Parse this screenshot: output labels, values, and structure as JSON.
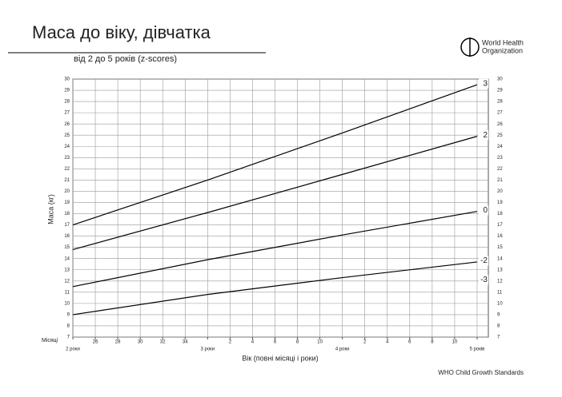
{
  "chart_data": {
    "type": "line",
    "title": "Маса до віку, дівчатка",
    "subtitle": "від 2 до 5 років (z-scores)",
    "y_label": "Маса (кг)",
    "x_label": "Вік (повні місяці і роки)",
    "x_unit_label": "Місяці",
    "source": "WHO Child Growth Standards",
    "logo": [
      "World Health",
      "Organization"
    ],
    "x": [
      24,
      36,
      48,
      60
    ],
    "series": [
      {
        "name": "3",
        "color": "#000000",
        "values": [
          17.0,
          21.0,
          25.2,
          29.5
        ]
      },
      {
        "name": "2",
        "color": "#000000",
        "values": [
          14.8,
          18.1,
          21.5,
          24.9
        ]
      },
      {
        "name": "0",
        "color": "#000000",
        "values": [
          11.5,
          13.9,
          16.1,
          18.2
        ]
      },
      {
        "name": "-2",
        "color": "#000000",
        "values": [
          9.0,
          10.8,
          12.3,
          13.7
        ]
      }
    ],
    "line_labels": [
      {
        "text": "3",
        "y": 29.6
      },
      {
        "text": "2",
        "y": 25.0
      },
      {
        "text": "0",
        "y": 18.3
      },
      {
        "text": "-2",
        "y": 13.8
      },
      {
        "text": "-3",
        "y": 12.1
      }
    ],
    "xlim": [
      24,
      61
    ],
    "ylim": [
      7,
      30
    ],
    "xticks": [
      {
        "value": 24,
        "label": "2 роки"
      },
      26,
      28,
      30,
      32,
      34,
      {
        "value": 36,
        "label": "3 роки"
      },
      {
        "value": 38,
        "label": "2"
      },
      {
        "value": 40,
        "label": "4"
      },
      {
        "value": 42,
        "label": "6"
      },
      {
        "value": 44,
        "label": "8"
      },
      {
        "value": 46,
        "label": "10"
      },
      {
        "value": 48,
        "label": "4 роки"
      },
      {
        "value": 50,
        "label": "2"
      },
      {
        "value": 52,
        "label": "4"
      },
      {
        "value": 54,
        "label": "6"
      },
      {
        "value": 56,
        "label": "8"
      },
      {
        "value": 58,
        "label": "10"
      },
      {
        "value": 60,
        "label": "5 років"
      }
    ],
    "yticks": [
      7,
      8,
      9,
      10,
      11,
      12,
      13,
      14,
      15,
      16,
      17,
      18,
      19,
      20,
      21,
      22,
      23,
      24,
      25,
      26,
      27,
      28,
      29,
      30
    ],
    "grid": true
  }
}
